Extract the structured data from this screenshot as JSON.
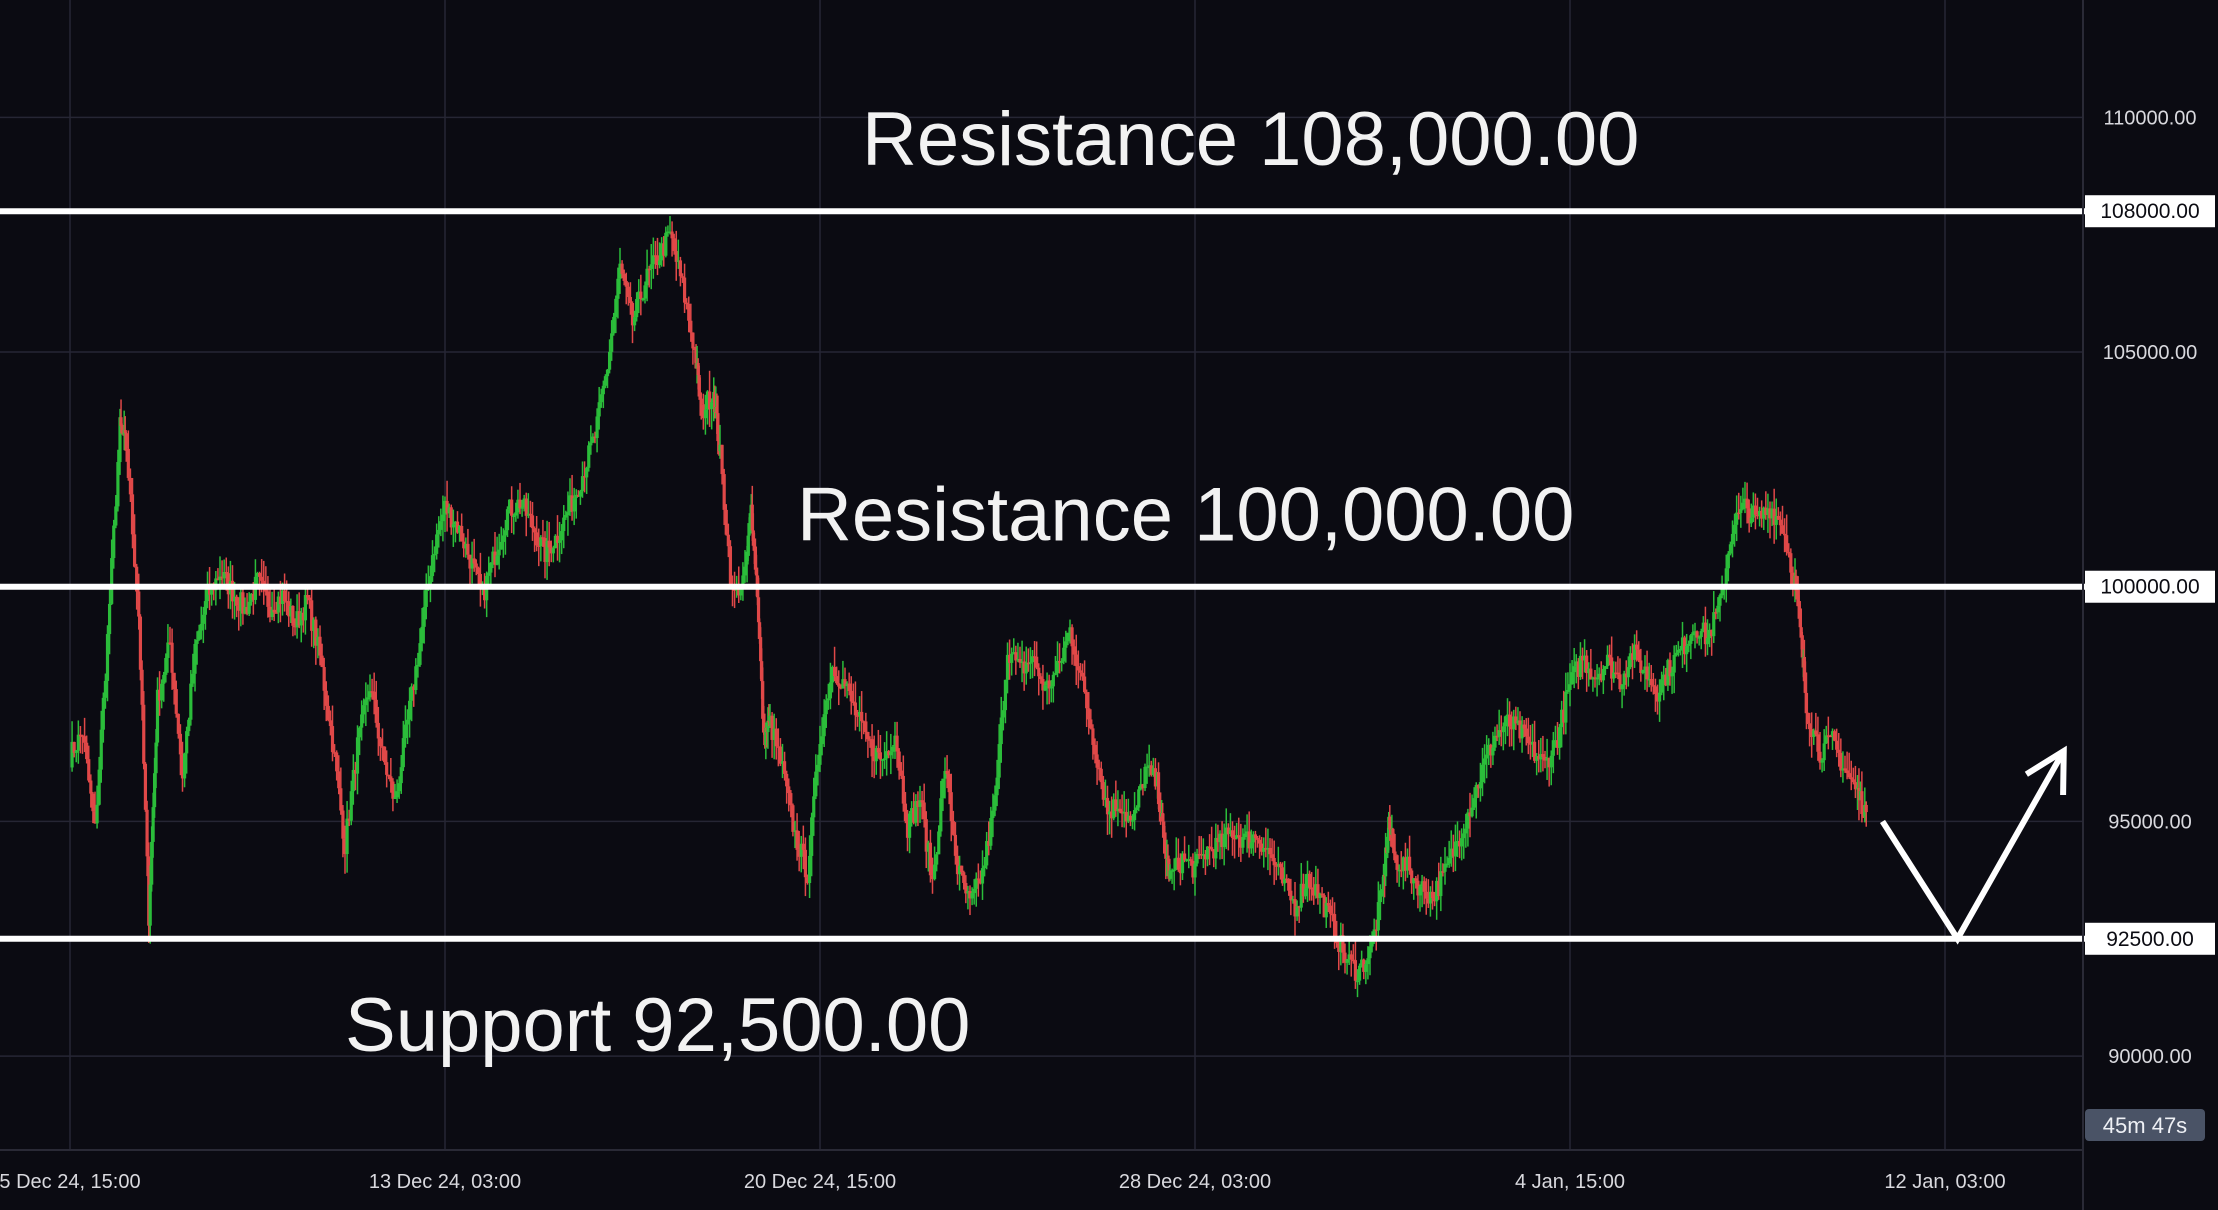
{
  "chart_data": {
    "type": "candlestick",
    "y_ticks": [
      "110000.00",
      "105000.00",
      "95000.00",
      "90000.00"
    ],
    "y_tick_values": [
      110000,
      105000,
      95000,
      90000
    ],
    "ylim": [
      88000,
      112500
    ],
    "x_ticks": [
      "5 Dec 24, 15:00",
      "13 Dec 24, 03:00",
      "20 Dec 24, 15:00",
      "28 Dec 24, 03:00",
      "4 Jan, 15:00",
      "12 Jan, 03:00"
    ],
    "grid": true,
    "levels": [
      {
        "kind": "resistance",
        "value": 108000,
        "label": "Resistance 108,000.00",
        "axis_tag": "108000.00"
      },
      {
        "kind": "resistance",
        "value": 100000,
        "label": "Resistance 100,000.00",
        "axis_tag": "100000.00"
      },
      {
        "kind": "support",
        "value": 92500,
        "label": "Support 92,500.00",
        "axis_tag": "92500.00"
      }
    ],
    "countdown": "45m 47s",
    "colors": {
      "background": "#0b0b12",
      "grid": "#262634",
      "up": "#2bbd3a",
      "down": "#e04848",
      "level": "#ffffff",
      "axis_tag_bg": "#ffffff",
      "countdown_bg": "#4a5366"
    },
    "price_path": [
      [
        0,
        96400
      ],
      [
        0.01,
        96900
      ],
      [
        0.02,
        94800
      ],
      [
        0.03,
        98900
      ],
      [
        0.04,
        103400
      ],
      [
        0.045,
        103000
      ],
      [
        0.055,
        99400
      ],
      [
        0.063,
        93000
      ],
      [
        0.07,
        97600
      ],
      [
        0.08,
        98800
      ],
      [
        0.09,
        96000
      ],
      [
        0.1,
        98600
      ],
      [
        0.11,
        99800
      ],
      [
        0.12,
        100300
      ],
      [
        0.13,
        99900
      ],
      [
        0.14,
        99500
      ],
      [
        0.15,
        100100
      ],
      [
        0.16,
        99600
      ],
      [
        0.17,
        99800
      ],
      [
        0.18,
        99200
      ],
      [
        0.19,
        99700
      ],
      [
        0.2,
        98500
      ],
      [
        0.21,
        96700
      ],
      [
        0.22,
        94500
      ],
      [
        0.23,
        96600
      ],
      [
        0.24,
        97900
      ],
      [
        0.25,
        96400
      ],
      [
        0.26,
        95400
      ],
      [
        0.27,
        97100
      ],
      [
        0.28,
        98800
      ],
      [
        0.29,
        100700
      ],
      [
        0.3,
        101700
      ],
      [
        0.31,
        101300
      ],
      [
        0.32,
        100600
      ],
      [
        0.33,
        99800
      ],
      [
        0.34,
        100700
      ],
      [
        0.35,
        101600
      ],
      [
        0.36,
        101800
      ],
      [
        0.37,
        101300
      ],
      [
        0.38,
        100700
      ],
      [
        0.39,
        101100
      ],
      [
        0.4,
        101700
      ],
      [
        0.41,
        102400
      ],
      [
        0.42,
        103200
      ],
      [
        0.43,
        104700
      ],
      [
        0.44,
        106800
      ],
      [
        0.45,
        105600
      ],
      [
        0.46,
        106500
      ],
      [
        0.47,
        107000
      ],
      [
        0.48,
        107500
      ],
      [
        0.49,
        106400
      ],
      [
        0.5,
        105000
      ],
      [
        0.505,
        103700
      ],
      [
        0.515,
        104200
      ],
      [
        0.52,
        102800
      ],
      [
        0.53,
        99800
      ],
      [
        0.54,
        100200
      ],
      [
        0.545,
        101700
      ],
      [
        0.55,
        99900
      ],
      [
        0.555,
        96800
      ],
      [
        0.56,
        97100
      ],
      [
        0.57,
        96100
      ],
      [
        0.58,
        94700
      ],
      [
        0.59,
        93900
      ],
      [
        0.6,
        96800
      ],
      [
        0.61,
        98300
      ],
      [
        0.62,
        97900
      ],
      [
        0.63,
        97200
      ],
      [
        0.64,
        96600
      ],
      [
        0.65,
        96300
      ],
      [
        0.66,
        96900
      ],
      [
        0.67,
        94900
      ],
      [
        0.68,
        95500
      ],
      [
        0.69,
        93700
      ],
      [
        0.7,
        96200
      ],
      [
        0.71,
        94000
      ],
      [
        0.72,
        93200
      ],
      [
        0.73,
        93900
      ],
      [
        0.74,
        95400
      ],
      [
        0.75,
        98700
      ],
      [
        0.76,
        98200
      ],
      [
        0.77,
        98500
      ],
      [
        0.78,
        97800
      ],
      [
        0.79,
        98200
      ],
      [
        0.8,
        99100
      ],
      [
        0.81,
        97900
      ],
      [
        0.82,
        96600
      ],
      [
        0.83,
        95200
      ],
      [
        0.84,
        95400
      ],
      [
        0.85,
        94900
      ],
      [
        0.86,
        96100
      ],
      [
        0.87,
        95800
      ],
      [
        0.875,
        94600
      ],
      [
        0.88,
        93800
      ],
      [
        0.89,
        94200
      ],
      [
        0.9,
        94000
      ],
      [
        0.91,
        94400
      ],
      [
        0.92,
        94500
      ],
      [
        0.93,
        94800
      ],
      [
        0.94,
        94600
      ],
      [
        0.95,
        94700
      ],
      [
        0.96,
        94300
      ],
      [
        0.97,
        93700
      ],
      [
        0.98,
        93200
      ],
      [
        0.99,
        93800
      ],
      [
        1.0,
        93400
      ],
      [
        1.01,
        92800
      ],
      [
        1.02,
        92100
      ],
      [
        1.03,
        91800
      ],
      [
        1.04,
        92200
      ],
      [
        1.05,
        93500
      ],
      [
        1.055,
        95000
      ],
      [
        1.06,
        94200
      ],
      [
        1.07,
        94000
      ],
      [
        1.08,
        93600
      ],
      [
        1.09,
        93400
      ],
      [
        1.1,
        93900
      ],
      [
        1.11,
        94600
      ],
      [
        1.12,
        95300
      ],
      [
        1.13,
        96100
      ],
      [
        1.14,
        96800
      ],
      [
        1.15,
        97100
      ],
      [
        1.16,
        96900
      ],
      [
        1.17,
        96500
      ],
      [
        1.18,
        96200
      ],
      [
        1.19,
        96800
      ],
      [
        1.2,
        97900
      ],
      [
        1.21,
        98500
      ],
      [
        1.22,
        98100
      ],
      [
        1.23,
        98400
      ],
      [
        1.24,
        98000
      ],
      [
        1.25,
        98600
      ],
      [
        1.26,
        98200
      ],
      [
        1.27,
        97800
      ],
      [
        1.28,
        98300
      ],
      [
        1.29,
        98700
      ],
      [
        1.3,
        99200
      ],
      [
        1.31,
        98900
      ],
      [
        1.32,
        99600
      ],
      [
        1.33,
        101300
      ],
      [
        1.34,
        101700
      ],
      [
        1.35,
        101400
      ],
      [
        1.36,
        101700
      ],
      [
        1.37,
        101300
      ],
      [
        1.38,
        100100
      ],
      [
        1.385,
        98800
      ],
      [
        1.39,
        97300
      ],
      [
        1.4,
        96500
      ],
      [
        1.41,
        96700
      ],
      [
        1.42,
        96100
      ],
      [
        1.43,
        95600
      ],
      [
        1.437,
        95200
      ]
    ],
    "projection": [
      {
        "t": 1.45,
        "price": 95000
      },
      {
        "t": 1.51,
        "price": 92500
      },
      {
        "t": 1.595,
        "price": 96500
      }
    ],
    "x_tick_t": [
      0,
      0.3,
      0.6,
      0.9,
      1.2,
      1.5
    ]
  }
}
